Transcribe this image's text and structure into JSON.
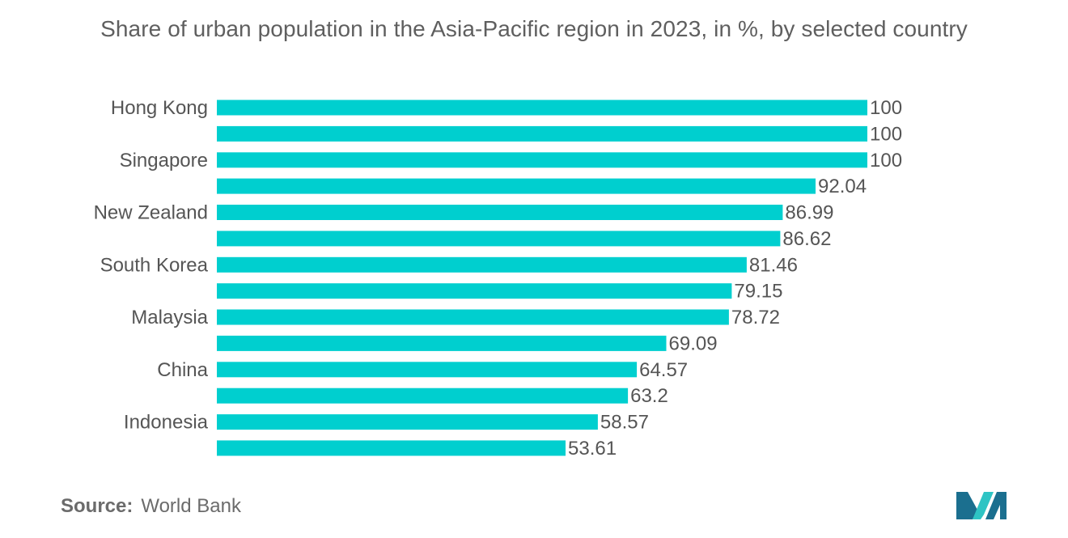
{
  "title": "Share of urban population in the Asia-Pacific region in 2023, in %, by selected country",
  "source": {
    "label": "Source:",
    "value": "World Bank"
  },
  "colors": {
    "bar": "#00cfcf",
    "text": "#555555",
    "logo_dark": "#1b6f8f",
    "logo_light": "#2ec4c4"
  },
  "logo_icon": "mordor-intelligence-logo",
  "chart_data": {
    "type": "bar",
    "orientation": "horizontal",
    "title": "Share of urban population in the Asia-Pacific region in 2023, in %, by selected country",
    "categories": [
      "Hong Kong",
      "",
      "Singapore",
      "",
      "New Zealand",
      "",
      "South Korea",
      "",
      "Malaysia",
      "",
      "China",
      "",
      "Indonesia",
      ""
    ],
    "values": [
      100,
      100,
      100,
      92.04,
      86.99,
      86.62,
      81.46,
      79.15,
      78.72,
      69.09,
      64.57,
      63.2,
      58.57,
      53.61
    ],
    "value_labels": [
      "100",
      "100",
      "100",
      "92.04",
      "86.99",
      "86.62",
      "81.46",
      "79.15",
      "78.72",
      "69.09",
      "64.57",
      "63.2",
      "58.57",
      "53.61"
    ],
    "xlim": [
      0,
      100
    ],
    "grid": false,
    "legend": "none"
  }
}
